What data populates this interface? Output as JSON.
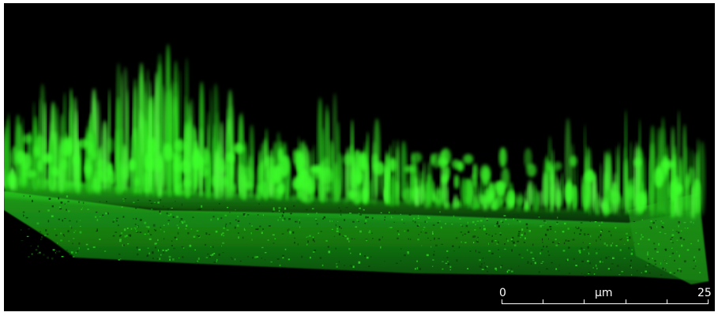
{
  "image": {
    "background_color": "#000000",
    "signal_color": "#3cff2a",
    "shadow_color": "#0d5d0a"
  },
  "scale_bar": {
    "start_label": "0",
    "unit_label": "µm",
    "end_label": "25",
    "color": "#ffffff"
  }
}
